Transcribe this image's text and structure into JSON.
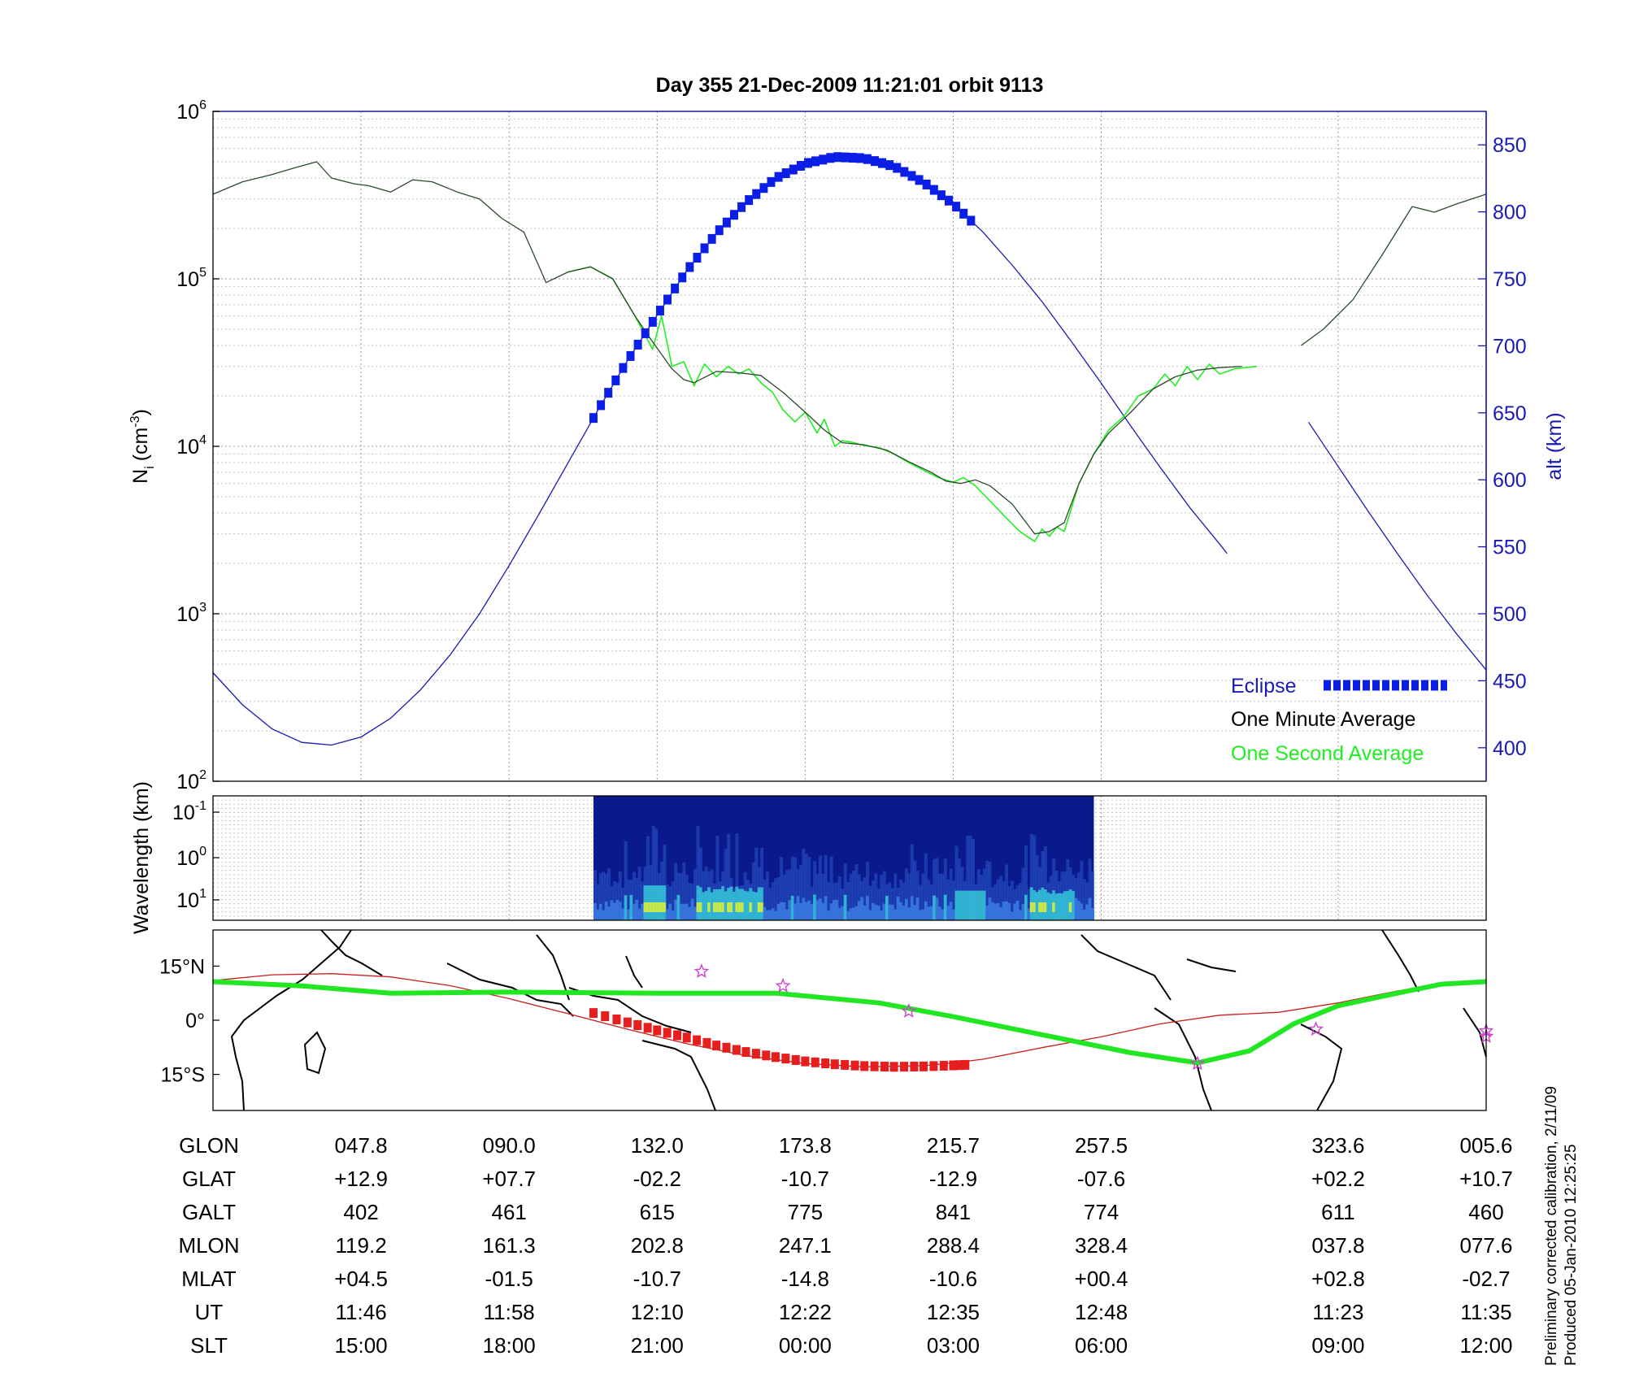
{
  "title": "Day 355  21-Dec-2009 11:21:01    orbit 9113",
  "colors": {
    "alt_line": "#1a1ab4",
    "eclipse": "#0a1ee6",
    "minute_avg": "#000000",
    "second_avg": "#22ee22",
    "footprint": "#22e622",
    "track": "#c81e1e",
    "eclipse_track": "#e61e1e",
    "star": "#cc44cc",
    "spectrogram_bg": "#0a1a8c"
  },
  "chart_data": [
    {
      "type": "line",
      "panel": "ion-density",
      "ylabel": "N",
      "ylabel_sub": "i",
      "ylabel_unit_open": "(cm",
      "ylabel_unit_exp": "-3",
      "ylabel_unit_close": ")",
      "yscale": "log",
      "ylim": [
        100,
        1000000
      ],
      "ytick_base": "10",
      "yticks_exp": [
        "2",
        "3",
        "4",
        "5",
        "6"
      ],
      "y2label": "alt (km)",
      "y2lim": [
        375,
        875
      ],
      "y2ticks": [
        "400",
        "450",
        "500",
        "550",
        "600",
        "650",
        "700",
        "750",
        "800",
        "850"
      ],
      "x_minutes_range": [
        0,
        86
      ],
      "grid": true,
      "legend_position": "bottom-right",
      "legend": {
        "eclipse": "Eclipse",
        "minute": "One Minute Average",
        "second": "One Second Average"
      },
      "series": [
        {
          "name": "One Minute Average",
          "x": [
            0,
            2,
            4,
            5.5,
            7,
            8,
            9.5,
            10.5,
            12,
            13.5,
            14.8,
            16.5,
            18,
            19.5,
            21,
            22.5,
            24,
            25.5,
            27,
            28.5,
            29.7,
            31,
            31.8,
            32.5,
            34,
            35.5,
            37,
            38.5,
            40,
            41.3,
            42.5,
            44,
            45.5,
            47,
            48.5,
            49.5,
            50.5,
            51.5,
            52.5,
            54,
            55.5,
            56.5,
            57.5,
            58.5,
            59.5,
            60.5,
            62,
            63.5,
            65,
            66.5,
            68,
            69.5,
            70.5,
            71.5
          ],
          "y": [
            320000,
            380000,
            420000,
            460000,
            500000,
            400000,
            370000,
            360000,
            330000,
            390000,
            380000,
            330000,
            300000,
            230000,
            190000,
            95000,
            110000,
            118000,
            100000,
            60000,
            42000,
            29000,
            25000,
            24000,
            28000,
            27500,
            26500,
            21000,
            16000,
            12500,
            10500,
            10200,
            9500,
            8100,
            7000,
            6200,
            6000,
            6300,
            5800,
            4500,
            3000,
            3100,
            3500,
            6000,
            9000,
            12000,
            16000,
            22000,
            26000,
            28500,
            29500,
            30000,
            null,
            null
          ]
        },
        {
          "name": "One Minute Average (after gap)",
          "x": [
            73.5,
            75,
            77,
            79,
            81,
            82.5,
            84,
            86
          ],
          "y": [
            40000,
            50000,
            75000,
            140000,
            270000,
            250000,
            280000,
            320000
          ]
        },
        {
          "name": "One Second Average",
          "x": [
            24,
            25.5,
            27,
            28.5,
            29.7,
            30.3,
            31,
            31.8,
            32.5,
            33.2,
            34,
            34.8,
            35.5,
            36.2,
            37,
            37.8,
            38.5,
            39.3,
            40,
            40.8,
            41.3,
            42,
            42.5,
            43.3,
            44,
            45,
            46,
            47,
            48,
            49,
            50,
            50.7,
            51.5,
            52.5,
            53.5,
            54.5,
            55.5,
            56,
            56.5,
            57,
            57.5,
            58.5,
            59.5,
            60.5,
            61.5,
            62.5,
            63.5,
            64.3,
            65,
            65.8,
            66.5,
            67.3,
            68,
            69,
            70.5
          ],
          "y": [
            110000,
            118000,
            100000,
            60000,
            38000,
            60000,
            30000,
            32000,
            23000,
            31000,
            26000,
            30000,
            27000,
            29000,
            24000,
            21000,
            16500,
            14000,
            16000,
            12000,
            14500,
            10000,
            10800,
            10500,
            10100,
            9800,
            9000,
            8000,
            7200,
            6500,
            6100,
            6500,
            5800,
            4700,
            3800,
            3100,
            2700,
            3200,
            2900,
            3300,
            3100,
            6000,
            9000,
            12500,
            15000,
            20000,
            22000,
            27000,
            23000,
            30000,
            25000,
            31000,
            27000,
            29000,
            30000
          ]
        }
      ],
      "altitude_series": {
        "name": "alt (km)",
        "x": [
          0,
          2,
          4,
          6,
          8,
          10,
          12,
          14,
          16,
          18,
          20,
          22,
          24,
          26,
          28,
          30,
          32,
          34,
          36,
          38,
          40,
          42,
          44,
          46,
          48,
          50,
          52,
          54,
          56,
          58,
          60,
          62,
          64,
          66,
          68,
          68.5,
          null,
          74,
          76,
          78,
          80,
          82,
          84,
          86
        ],
        "y": [
          456,
          432,
          414,
          404,
          402,
          408,
          422,
          443,
          469,
          500,
          536,
          574,
          613,
          652,
          689,
          723,
          756,
          784,
          807,
          825,
          836,
          841,
          840,
          834,
          822,
          806,
          785,
          760,
          733,
          703,
          672,
          640,
          609,
          579,
          552,
          545,
          null,
          643,
          610,
          577,
          545,
          514,
          485,
          458
        ]
      },
      "eclipse_x_range": [
        25.7,
        51.2
      ],
      "eclipse_alt_range": [
        540,
        841
      ]
    },
    {
      "type": "heatmap",
      "panel": "spectrogram",
      "ylabel": "Wavelength (km)",
      "ytick_base": "10",
      "yticks_exp": [
        "-1",
        "0",
        "1"
      ],
      "data_x_range": [
        25.7,
        59.5
      ]
    },
    {
      "type": "line",
      "panel": "ground-track-map",
      "ylabel_ticks": [
        "15°N",
        "0°",
        "15°S"
      ],
      "ylim": [
        -25,
        25
      ],
      "footprint": {
        "name": "magnetic footprint",
        "x": [
          0,
          6,
          12,
          20,
          30,
          38,
          45,
          50,
          56,
          62,
          66.5,
          70,
          73,
          76,
          80,
          83,
          86
        ],
        "lat": [
          10.7,
          9.5,
          7.5,
          7.8,
          7.5,
          7.5,
          4.8,
          1.0,
          -4.0,
          -9.0,
          -11.8,
          -8.5,
          -1.0,
          4.0,
          7.5,
          10.0,
          10.7
        ]
      },
      "orbit_track": {
        "name": "orbit track",
        "x": [
          0,
          4,
          8,
          12,
          16,
          20,
          24,
          28,
          32,
          36,
          40,
          44,
          48,
          50,
          52,
          56,
          60,
          64,
          68,
          72,
          76,
          80,
          84,
          86
        ],
        "lat": [
          11.0,
          12.6,
          12.9,
          12.0,
          9.6,
          6.0,
          1.8,
          -2.5,
          -6.5,
          -9.8,
          -12.0,
          -12.9,
          -12.6,
          -11.8,
          -10.8,
          -7.6,
          -4.6,
          -1.0,
          1.4,
          2.2,
          4.8,
          8.1,
          10.5,
          10.7
        ]
      },
      "eclipse_track": {
        "x": [
          25.7,
          28,
          30,
          32,
          34,
          36,
          38,
          40,
          42,
          44,
          46,
          48,
          50,
          51.2
        ],
        "lat": [
          2.0,
          -0.6,
          -2.8,
          -4.8,
          -7.0,
          -8.8,
          -10.2,
          -11.4,
          -12.2,
          -12.7,
          -12.9,
          -12.8,
          -12.5,
          -12.3
        ]
      },
      "stars": [
        {
          "x": 33,
          "lat": 13.5
        },
        {
          "x": 38.5,
          "lat": 9.5
        },
        {
          "x": 47,
          "lat": 2.5
        },
        {
          "x": 66.5,
          "lat": -12.0
        },
        {
          "x": 74.5,
          "lat": -2.5
        },
        {
          "x": 86,
          "lat": -3.0
        },
        {
          "x": 86,
          "lat": -4.5
        }
      ]
    }
  ],
  "table": {
    "row_labels": [
      "GLON",
      "GLAT",
      "GALT",
      "MLON",
      "MLAT",
      "UT",
      "SLT"
    ],
    "columns": [
      {
        "x": 10,
        "values": [
          "047.8",
          "+12.9",
          "402",
          "119.2",
          "+04.5",
          "11:46",
          "15:00"
        ]
      },
      {
        "x": 20,
        "values": [
          "090.0",
          "+07.7",
          "461",
          "161.3",
          "-01.5",
          "11:58",
          "18:00"
        ]
      },
      {
        "x": 30,
        "values": [
          "132.0",
          "-02.2",
          "615",
          "202.8",
          "-10.7",
          "12:10",
          "21:00"
        ]
      },
      {
        "x": 40,
        "values": [
          "173.8",
          "-10.7",
          "775",
          "247.1",
          "-14.8",
          "12:22",
          "00:00"
        ]
      },
      {
        "x": 50,
        "values": [
          "215.7",
          "-12.9",
          "841",
          "288.4",
          "-10.6",
          "12:35",
          "03:00"
        ]
      },
      {
        "x": 60,
        "values": [
          "257.5",
          "-07.6",
          "774",
          "328.4",
          "+00.4",
          "12:48",
          "06:00"
        ]
      },
      {
        "x": 76,
        "values": [
          "323.6",
          "+02.2",
          "611",
          "037.8",
          "+02.8",
          "11:23",
          "09:00"
        ]
      },
      {
        "x": 86,
        "values": [
          "005.6",
          "+10.7",
          "460",
          "077.6",
          "-02.7",
          "11:35",
          "12:00"
        ]
      }
    ]
  },
  "footer": {
    "calibration": "Preliminary corrected calibration, 2/11/09",
    "produced": "Produced 05-Jan-2010 12:25:25"
  }
}
